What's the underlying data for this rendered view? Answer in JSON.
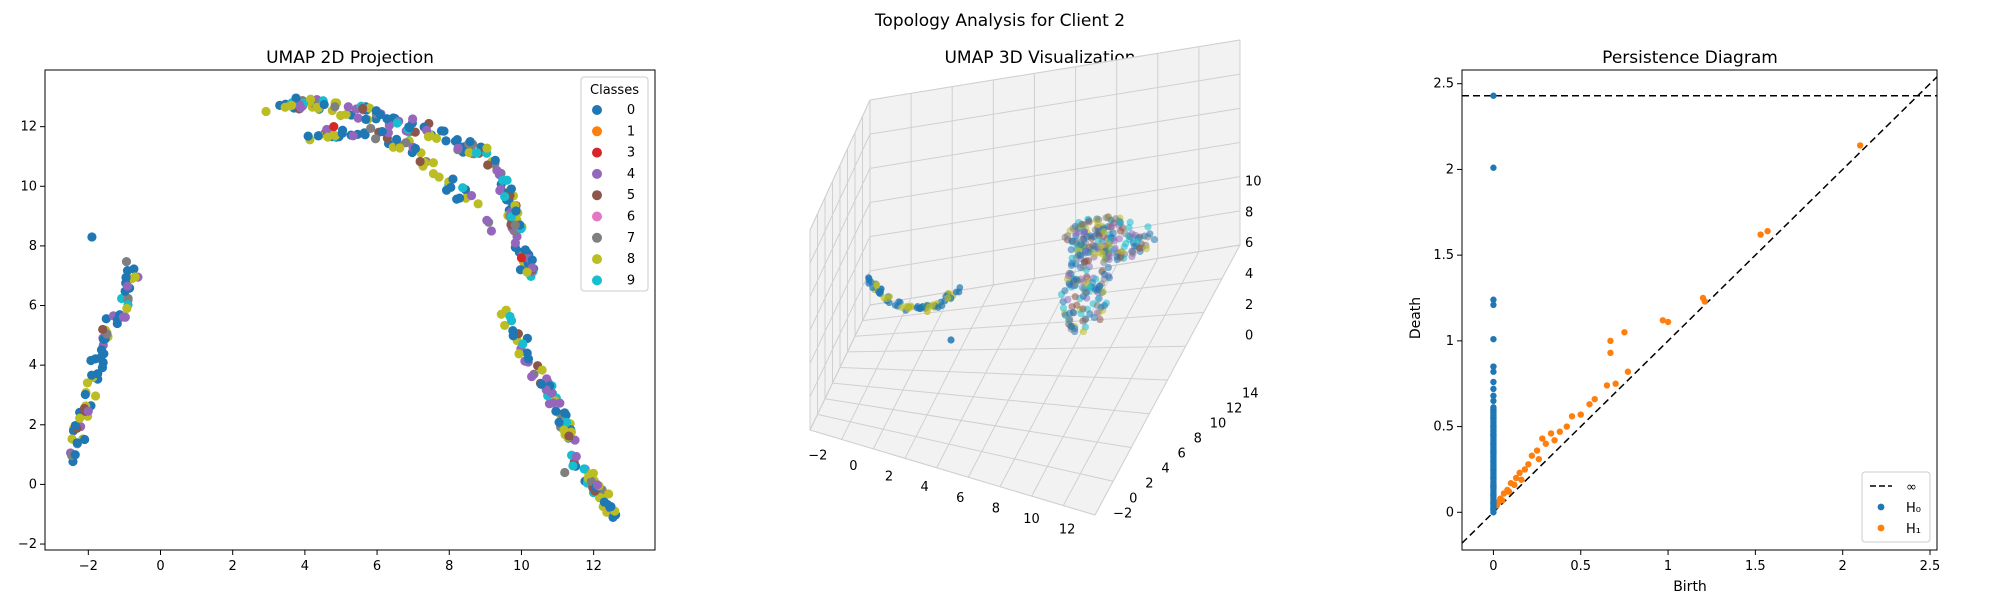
{
  "suptitle": "Topology Analysis for Client 2",
  "colors": {
    "c0": "#1f77b4",
    "c1": "#ff7f0e",
    "c3": "#d62728",
    "c4": "#9467bd",
    "c5": "#8c564b",
    "c6": "#e377c2",
    "c7": "#7f7f7f",
    "c8": "#bcbd22",
    "c9": "#17becf"
  },
  "chart_data": [
    {
      "type": "scatter",
      "title": "UMAP 2D Projection",
      "xlabel": "",
      "ylabel": "",
      "xlim": [
        -3.2,
        13.7
      ],
      "ylim": [
        -2.2,
        13.9
      ],
      "xticks": [
        -2,
        0,
        2,
        4,
        6,
        8,
        10,
        12
      ],
      "yticks": [
        -2,
        0,
        2,
        4,
        6,
        8,
        10,
        12
      ],
      "legend": {
        "title": "Classes",
        "location": "top-right",
        "entries": [
          "0",
          "1",
          "3",
          "4",
          "5",
          "6",
          "7",
          "8",
          "9"
        ]
      },
      "clusters": [
        {
          "name": "left-strand",
          "path": [
            [
              -2.4,
              0.9
            ],
            [
              -2.2,
              2.0
            ],
            [
              -1.9,
              3.5
            ],
            [
              -1.6,
              4.7
            ],
            [
              -1.3,
              5.5
            ],
            [
              -1.0,
              5.9
            ],
            [
              -0.8,
              6.5
            ],
            [
              -0.8,
              7.1
            ],
            [
              -0.9,
              7.5
            ]
          ],
          "count": 70
        },
        {
          "name": "top-arc",
          "path": [
            [
              3.0,
              12.4
            ],
            [
              4.0,
              12.8
            ],
            [
              5.0,
              12.6
            ],
            [
              6.0,
              12.4
            ],
            [
              7.0,
              12.0
            ],
            [
              8.0,
              11.6
            ],
            [
              9.0,
              11.0
            ],
            [
              9.6,
              9.8
            ],
            [
              9.9,
              8.4
            ],
            [
              10.2,
              7.2
            ],
            [
              10.3,
              6.9
            ]
          ],
          "count": 170
        },
        {
          "name": "top-arc-lower",
          "path": [
            [
              4.0,
              11.7
            ],
            [
              5.5,
              11.9
            ],
            [
              7.0,
              11.2
            ],
            [
              8.0,
              10.0
            ],
            [
              8.8,
              9.4
            ],
            [
              9.2,
              8.3
            ]
          ],
          "count": 60
        },
        {
          "name": "right-strand",
          "path": [
            [
              9.5,
              5.7
            ],
            [
              10.0,
              4.8
            ],
            [
              10.4,
              3.8
            ],
            [
              11.0,
              2.7
            ],
            [
              11.3,
              1.7
            ],
            [
              11.5,
              0.6
            ],
            [
              12.0,
              0.0
            ],
            [
              12.6,
              -1.2
            ]
          ],
          "count": 100
        }
      ],
      "singles": [
        {
          "x": -1.9,
          "y": 8.3,
          "cls": 0
        },
        {
          "x": 4.8,
          "y": 12.0,
          "cls": 3
        },
        {
          "x": 10.0,
          "y": 7.6,
          "cls": 3
        },
        {
          "x": 11.2,
          "y": 0.4,
          "cls": 7
        }
      ]
    },
    {
      "type": "scatter3d",
      "title": "UMAP 3D Visualization",
      "xticks": [
        -2,
        0,
        2,
        4,
        6,
        8,
        10,
        12
      ],
      "yticks": [
        -2,
        0,
        2,
        4,
        6,
        8,
        10,
        12,
        14
      ],
      "zticks": [
        0,
        2,
        4,
        6,
        8,
        10
      ],
      "xlim": [
        -3,
        13
      ],
      "ylim": [
        -3,
        15
      ],
      "zlim": [
        -1,
        11
      ]
    },
    {
      "type": "scatter",
      "title": "Persistence Diagram",
      "xlabel": "Birth",
      "ylabel": "Death",
      "xlim": [
        -0.18,
        2.54
      ],
      "ylim": [
        -0.22,
        2.58
      ],
      "xticks": [
        0.0,
        0.5,
        1.0,
        1.5,
        2.0,
        2.5
      ],
      "yticks": [
        0.0,
        0.5,
        1.0,
        1.5,
        2.0,
        2.5
      ],
      "infinity_line": 2.43,
      "legend": {
        "location": "bottom-right",
        "entries": [
          "∞",
          "H₀",
          "H₁"
        ]
      },
      "series": [
        {
          "name": "H0",
          "points": [
            [
              0,
              2.43
            ],
            [
              0,
              2.01
            ],
            [
              0,
              1.24
            ],
            [
              0,
              1.21
            ],
            [
              0,
              1.01
            ],
            [
              0,
              0.85
            ],
            [
              0,
              0.82
            ],
            [
              0,
              0.76
            ],
            [
              0,
              0.72
            ],
            [
              0,
              0.68
            ],
            [
              0,
              0.65
            ],
            [
              0,
              0.6
            ],
            [
              0,
              0.55
            ],
            [
              0,
              0.5
            ],
            [
              0,
              0.45
            ],
            [
              0,
              0.4
            ],
            [
              0,
              0.35
            ],
            [
              0,
              0.3
            ],
            [
              0,
              0.25
            ],
            [
              0,
              0.2
            ],
            [
              0,
              0.15
            ],
            [
              0,
              0.1
            ],
            [
              0,
              0.05
            ],
            [
              0,
              0.02
            ]
          ]
        },
        {
          "name": "H1",
          "points": [
            [
              2.1,
              2.14
            ],
            [
              1.57,
              1.64
            ],
            [
              1.53,
              1.62
            ],
            [
              1.2,
              1.25
            ],
            [
              1.21,
              1.23
            ],
            [
              1.0,
              1.11
            ],
            [
              0.97,
              1.12
            ],
            [
              0.75,
              1.05
            ],
            [
              0.67,
              1.0
            ],
            [
              0.77,
              0.82
            ],
            [
              0.67,
              0.93
            ],
            [
              0.7,
              0.75
            ],
            [
              0.65,
              0.74
            ],
            [
              0.58,
              0.66
            ],
            [
              0.55,
              0.63
            ],
            [
              0.5,
              0.57
            ],
            [
              0.45,
              0.56
            ],
            [
              0.42,
              0.5
            ],
            [
              0.38,
              0.47
            ],
            [
              0.33,
              0.46
            ],
            [
              0.28,
              0.43
            ],
            [
              0.3,
              0.4
            ],
            [
              0.35,
              0.42
            ],
            [
              0.25,
              0.36
            ],
            [
              0.22,
              0.33
            ],
            [
              0.26,
              0.31
            ],
            [
              0.2,
              0.28
            ],
            [
              0.18,
              0.25
            ],
            [
              0.15,
              0.23
            ],
            [
              0.13,
              0.2
            ],
            [
              0.1,
              0.17
            ],
            [
              0.12,
              0.16
            ],
            [
              0.08,
              0.13
            ],
            [
              0.06,
              0.11
            ],
            [
              0.04,
              0.08
            ],
            [
              0.03,
              0.06
            ],
            [
              0.02,
              0.04
            ],
            [
              0.05,
              0.07
            ],
            [
              0.09,
              0.12
            ],
            [
              0.16,
              0.19
            ]
          ]
        }
      ]
    }
  ]
}
